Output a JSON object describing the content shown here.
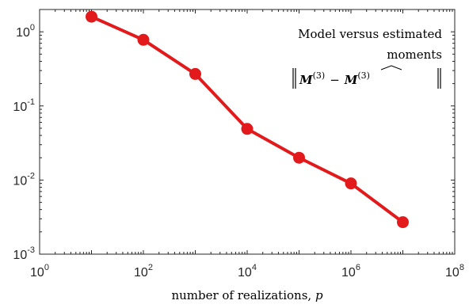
{
  "chart_data": {
    "type": "line",
    "xscale": "log",
    "yscale": "log",
    "xlim": [
      1,
      100000000
    ],
    "ylim": [
      0.001,
      2
    ],
    "x_ticks": [
      {
        "base": "10",
        "exp": "0",
        "value": 1
      },
      {
        "base": "10",
        "exp": "2",
        "value": 100
      },
      {
        "base": "10",
        "exp": "4",
        "value": 10000
      },
      {
        "base": "10",
        "exp": "6",
        "value": 1000000
      },
      {
        "base": "10",
        "exp": "8",
        "value": 100000000
      }
    ],
    "y_ticks": [
      {
        "base": "10",
        "exp": "0",
        "value": 1
      },
      {
        "base": "10",
        "exp": "-1",
        "value": 0.1
      },
      {
        "base": "10",
        "exp": "-2",
        "value": 0.01
      },
      {
        "base": "10",
        "exp": "-3",
        "value": 0.001
      }
    ],
    "xlabel": "number of realizations, p",
    "ylabel": "",
    "grid": false,
    "series": [
      {
        "color": "#e31a1c",
        "x": [
          10,
          100,
          1000,
          10000,
          100000,
          1000000,
          10000000
        ],
        "y": [
          1.6,
          0.78,
          0.27,
          0.049,
          0.02,
          0.009,
          0.0027
        ]
      }
    ],
    "annotation": {
      "line1": "Model versus estimated",
      "line2": "moments",
      "formula_left": "M",
      "formula_sup": "(3)",
      "formula_op": "−",
      "formula_right": "M",
      "formula_sup2": "(3)"
    }
  }
}
